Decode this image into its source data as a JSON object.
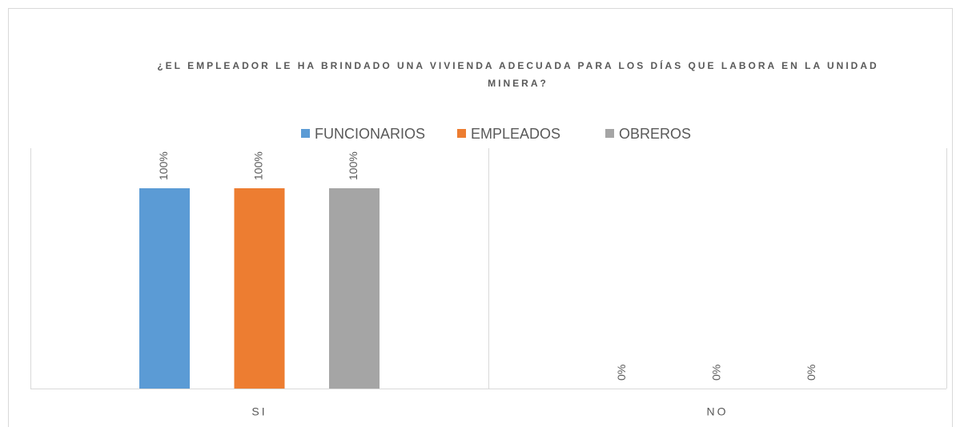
{
  "chart_data": {
    "type": "bar",
    "title": "¿EL EMPLEADOR LE HA BRINDADO UNA VIVIENDA ADECUADA PARA LOS DÍAS QUE LABORA EN LA UNIDAD MINERA?",
    "categories": [
      "SI",
      "NO"
    ],
    "series": [
      {
        "name": "FUNCIONARIOS",
        "color": "#5b9bd5",
        "values": [
          100,
          0
        ],
        "value_labels": [
          "100%",
          "0%"
        ]
      },
      {
        "name": "EMPLEADOS",
        "color": "#ed7d31",
        "values": [
          100,
          0
        ],
        "value_labels": [
          "100%",
          "0%"
        ]
      },
      {
        "name": "OBREROS",
        "color": "#a5a5a5",
        "values": [
          100,
          0
        ],
        "value_labels": [
          "100%",
          "0%"
        ]
      }
    ],
    "ylim": [
      0,
      120
    ],
    "legend": "top"
  }
}
